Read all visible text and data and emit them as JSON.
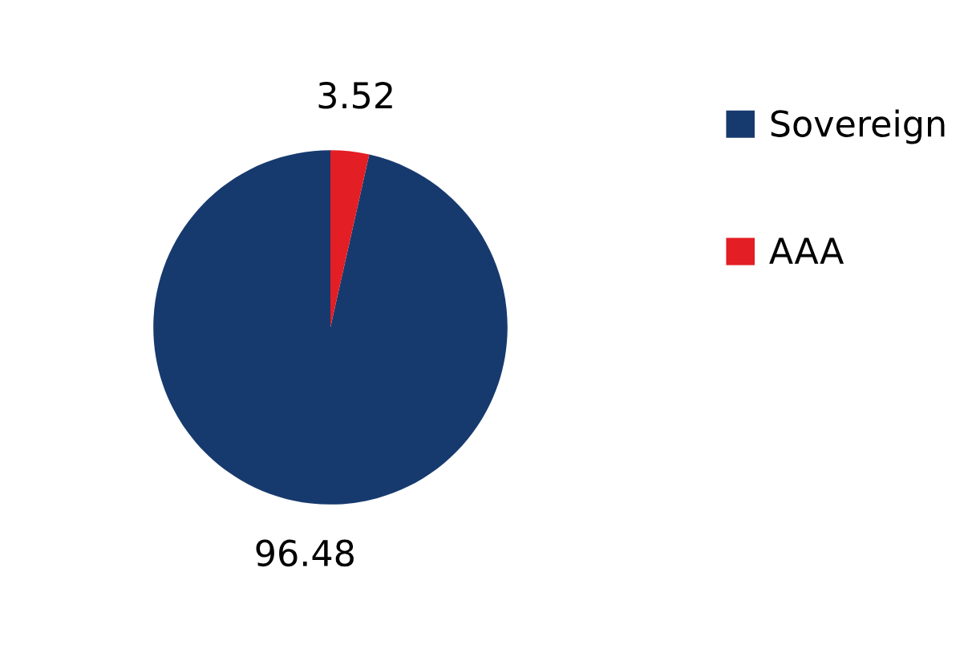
{
  "chart_data": {
    "type": "pie",
    "categories": [
      "Sovereign",
      "AAA"
    ],
    "values": [
      96.48,
      3.52
    ],
    "colors": [
      "#173a6e",
      "#e31e24"
    ],
    "data_labels": true,
    "legend": "right"
  }
}
